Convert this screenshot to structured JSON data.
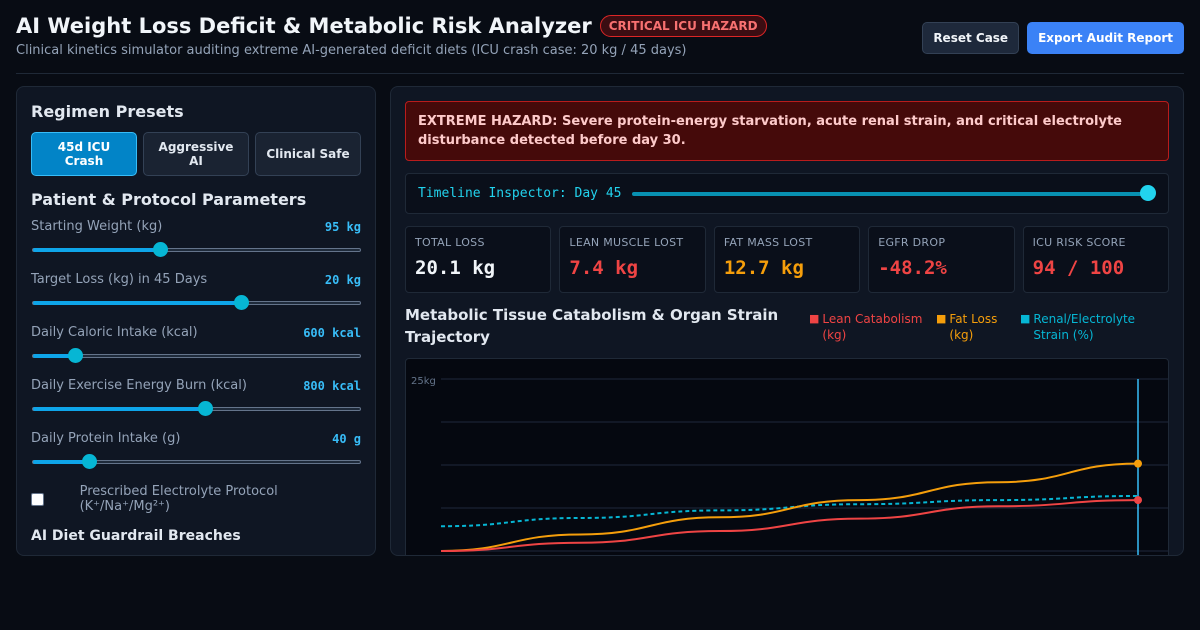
{
  "header": {
    "title": "AI Weight Loss Deficit & Metabolic Risk Analyzer",
    "badge": "CRITICAL ICU HAZARD",
    "subtitle": "Clinical kinetics simulator auditing extreme AI-generated deficit diets (ICU crash case: 20 kg / 45 days)",
    "reset_label": "Reset Case",
    "export_label": "Export Audit Report"
  },
  "presets": {
    "title": "Regimen Presets",
    "items": [
      {
        "label": "45d ICU Crash",
        "active": true
      },
      {
        "label": "Aggressive AI",
        "active": false
      },
      {
        "label": "Clinical Safe",
        "active": false
      }
    ]
  },
  "params": {
    "title": "Patient & Protocol Parameters",
    "items": [
      {
        "label": "Starting Weight (kg)",
        "value": "95 kg",
        "level": 0.39
      },
      {
        "label": "Target Loss (kg) in 45 Days",
        "value": "20 kg",
        "level": 0.64
      },
      {
        "label": "Daily Caloric Intake (kcal)",
        "value": "600 kcal",
        "level": 0.13
      },
      {
        "label": "Daily Exercise Energy Burn (kcal)",
        "value": "800 kcal",
        "level": 0.53
      },
      {
        "label": "Daily Protein Intake (g)",
        "value": "40 g",
        "level": 0.175
      }
    ],
    "electrolyte_label": "Prescribed Electrolyte Protocol (K⁺/Na⁺/Mg²⁺)",
    "electrolyte_checked": false
  },
  "breaches_title": "AI Diet Guardrail Breaches",
  "alert": "EXTREME HAZARD: Severe protein-energy starvation, acute renal strain, and critical electrolyte disturbance detected before day 30.",
  "timeline": {
    "label": "Timeline Inspector: Day 45",
    "level": 1.0
  },
  "kpis": [
    {
      "label": "TOTAL LOSS",
      "value": "20.1 kg",
      "color": "#f1f5f9"
    },
    {
      "label": "LEAN MUSCLE LOST",
      "value": "7.4 kg",
      "color": "#ef4444"
    },
    {
      "label": "FAT MASS LOST",
      "value": "12.7 kg",
      "color": "#f59e0b"
    },
    {
      "label": "EGFR DROP",
      "value": "-48.2%",
      "color": "#ef4444"
    },
    {
      "label": "ICU RISK SCORE",
      "value": "94 / 100",
      "color": "#ef4444"
    }
  ],
  "chart": {
    "title": "Metabolic Tissue Catabolism & Organ Strain Trajectory",
    "legend": [
      {
        "label": "Lean Catabolism (kg)",
        "color": "#ef4444"
      },
      {
        "label": "Fat Loss (kg)",
        "color": "#f59e0b"
      },
      {
        "label": "Renal/Electrolyte Strain (%)",
        "color": "#06b6d4"
      }
    ],
    "y_max_label": "25kg"
  },
  "chart_data": {
    "type": "line",
    "x": [
      0,
      9,
      18,
      27,
      36,
      45
    ],
    "ylim": [
      0,
      25
    ],
    "series": [
      {
        "name": "Lean Catabolism (kg)",
        "values": [
          0,
          1.2,
          2.9,
          4.7,
          6.5,
          7.4
        ]
      },
      {
        "name": "Fat Loss (kg)",
        "values": [
          0,
          2.4,
          4.9,
          7.4,
          10.0,
          12.7
        ]
      },
      {
        "name": "Renal/Electrolyte Strain (%)",
        "values": [
          3.6,
          4.8,
          5.9,
          6.8,
          7.4,
          8.0
        ]
      }
    ],
    "inspector_x": 45
  }
}
